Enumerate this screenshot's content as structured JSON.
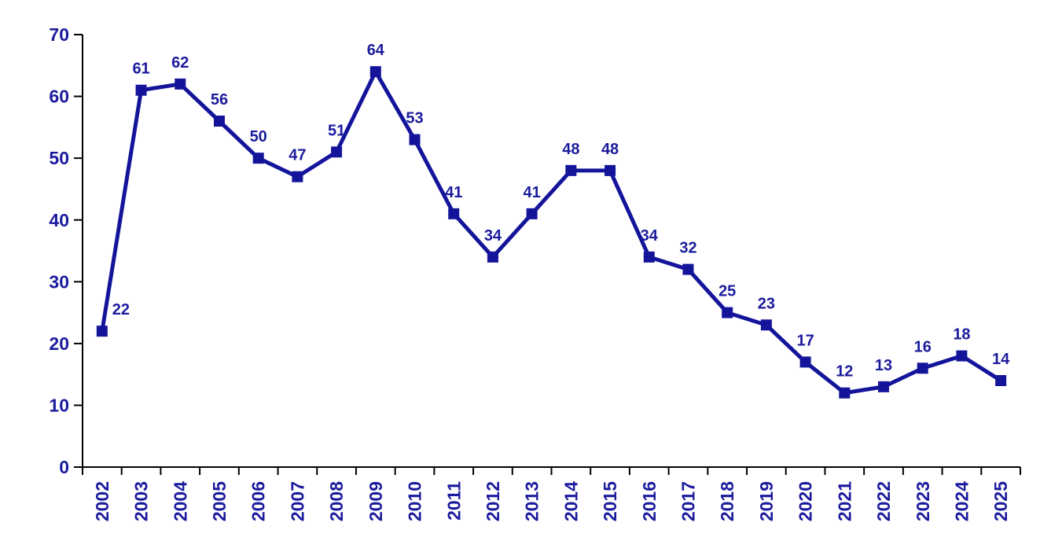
{
  "chart_data": {
    "type": "line",
    "title": "",
    "xlabel": "",
    "ylabel": "",
    "categories": [
      "2002",
      "2003",
      "2004",
      "2005",
      "2006",
      "2007",
      "2008",
      "2009",
      "2010",
      "2011",
      "2012",
      "2013",
      "2014",
      "2015",
      "2016",
      "2017",
      "2018",
      "2019",
      "2020",
      "2021",
      "2022",
      "2023",
      "2024",
      "2025"
    ],
    "values": [
      22,
      61,
      62,
      56,
      50,
      47,
      51,
      64,
      53,
      41,
      34,
      41,
      48,
      48,
      34,
      32,
      25,
      23,
      17,
      12,
      13,
      16,
      18,
      14
    ],
    "data_labels": [
      22,
      61,
      62,
      56,
      50,
      47,
      51,
      64,
      53,
      41,
      34,
      41,
      48,
      48,
      34,
      32,
      25,
      23,
      17,
      12,
      13,
      16,
      18,
      14
    ],
    "ylim": [
      0,
      70
    ],
    "ytick_step": 10,
    "ytick_labels": [
      "0",
      "10",
      "20",
      "30",
      "40",
      "50",
      "60",
      "70"
    ],
    "grid": false,
    "legend_position": "none",
    "marker": "square",
    "x_label_rotation_deg": -90,
    "colors": {
      "line": "#14149B",
      "marker": "#14149B",
      "tick_text": "#1B1B9E",
      "data_label_text": "#1B1B9E",
      "axis": "#000000",
      "background": "#FFFFFF"
    }
  }
}
